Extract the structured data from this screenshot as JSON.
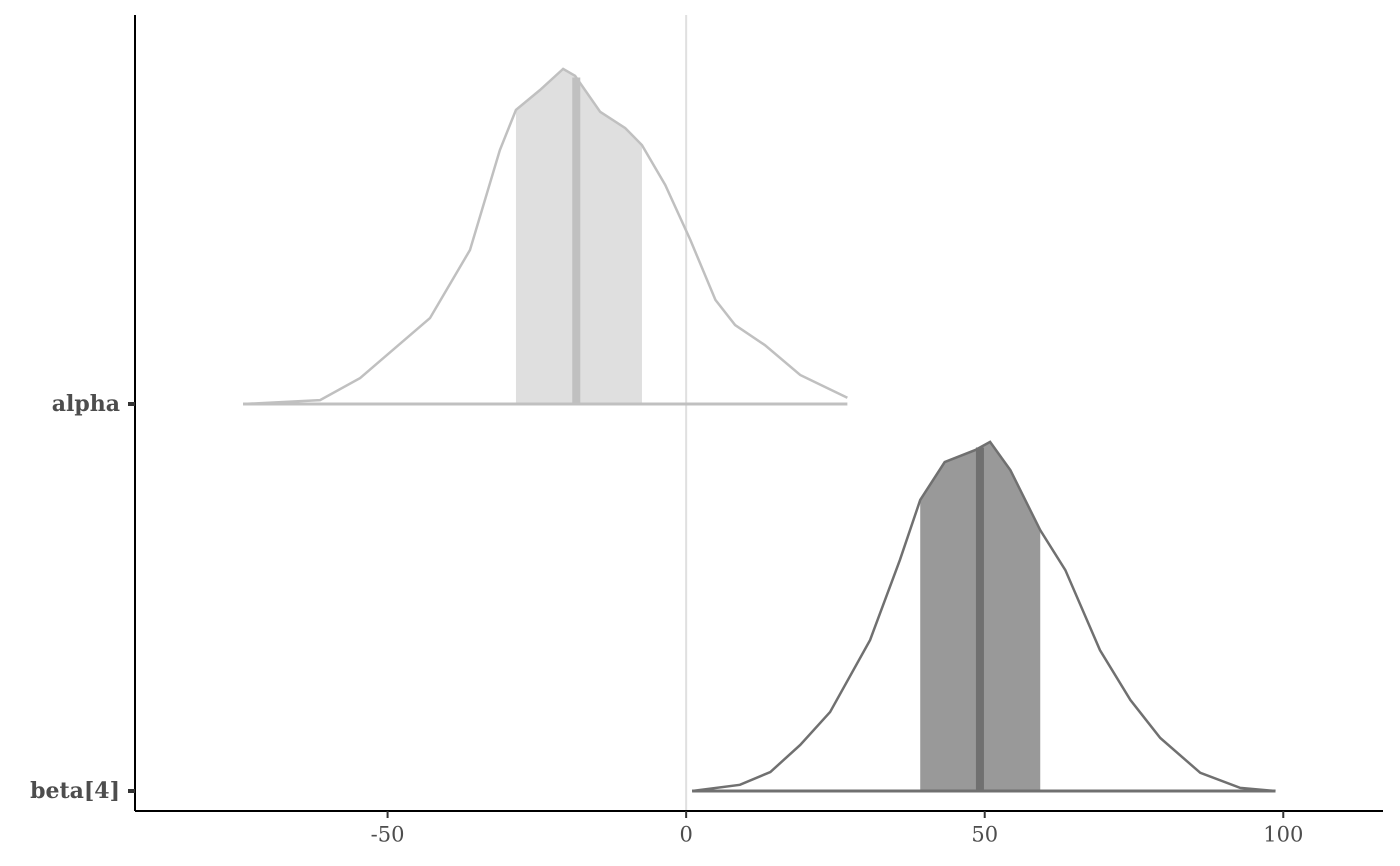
{
  "chart_data": {
    "type": "ridge",
    "categories": [
      "alpha",
      "beta[4]"
    ],
    "xlim": [
      -92.3,
      116.7
    ],
    "xticks": [
      -50,
      0,
      50,
      100
    ],
    "vline": 0,
    "series": [
      {
        "color": "#c0c0c0",
        "fill": "#dfdfdf",
        "x": [
          -74.2,
          -61.3,
          -54.6,
          -42.9,
          -36.2,
          -31.2,
          -28.5,
          -24.5,
          -20.6,
          -18.6,
          -14.4,
          -10.2,
          -7.4,
          -3.5,
          0.7,
          4.9,
          8.2,
          13.2,
          19.1,
          27.0
        ],
        "values": [
          0,
          0.01,
          0.067,
          0.222,
          0.398,
          0.656,
          0.76,
          0.811,
          0.866,
          0.848,
          0.755,
          0.713,
          0.669,
          0.566,
          0.424,
          0.269,
          0.204,
          0.152,
          0.075,
          0.016
        ],
        "interval": [
          -28.5,
          -7.4
        ],
        "median": -18.4
      },
      {
        "color": "#707070",
        "fill": "#999999",
        "x": [
          1.0,
          9.0,
          14.1,
          19.1,
          24.1,
          30.8,
          35.8,
          39.2,
          43.3,
          48.4,
          50.9,
          54.3,
          59.3,
          63.5,
          69.3,
          74.4,
          79.4,
          86.1,
          92.8,
          98.7
        ],
        "values": [
          0,
          0.016,
          0.049,
          0.119,
          0.204,
          0.39,
          0.597,
          0.752,
          0.85,
          0.881,
          0.902,
          0.829,
          0.674,
          0.571,
          0.364,
          0.235,
          0.137,
          0.047,
          0.008,
          0
        ],
        "interval": [
          39.2,
          59.3
        ],
        "median": 49.2
      }
    ]
  }
}
